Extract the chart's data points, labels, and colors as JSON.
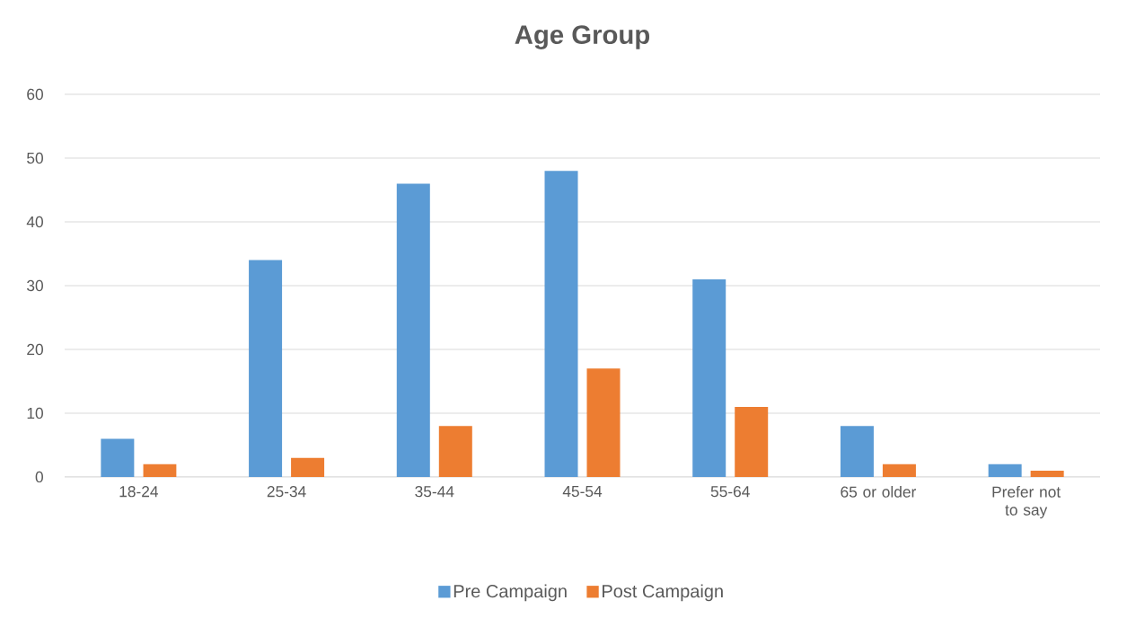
{
  "chart_data": {
    "type": "bar",
    "title": "Age Group",
    "categories": [
      "18-24",
      "25-34",
      "35-44",
      "45-54",
      "55-64",
      "65 or older",
      "Prefer not to say"
    ],
    "series": [
      {
        "name": "Pre Campaign",
        "color": "#5b9bd5",
        "values": [
          6,
          34,
          46,
          48,
          31,
          8,
          2
        ]
      },
      {
        "name": "Post Campaign",
        "color": "#ed7d31",
        "values": [
          2,
          3,
          8,
          17,
          11,
          2,
          1
        ]
      }
    ],
    "ylim": [
      0,
      60
    ],
    "yticks": [
      0,
      10,
      20,
      30,
      40,
      50,
      60
    ],
    "grid": "y",
    "legend": "bottom"
  }
}
